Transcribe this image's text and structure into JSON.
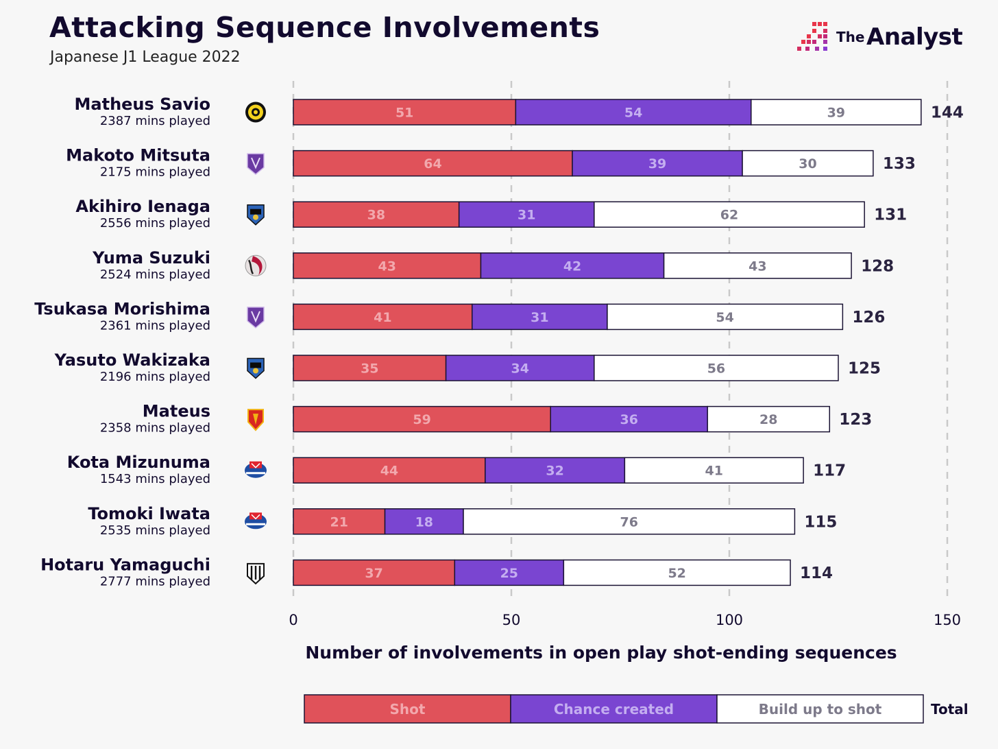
{
  "header": {
    "title": "Attacking Sequence Involvements",
    "subtitle": "Japanese J1 League 2022"
  },
  "brand": {
    "logo_small": "The",
    "logo_large": "Analyst",
    "mark_colors": [
      "#e8364a",
      "#c2297a",
      "#8a3bd0"
    ]
  },
  "colors": {
    "shot": "#e0525a",
    "chance": "#7a45d1",
    "buildup": "#ffffff",
    "shot_text": "#f2a8ad",
    "chance_text": "#c4aef0",
    "buildup_text": "#7d7a8a",
    "grid": "#c9c9c9"
  },
  "chart_data": {
    "type": "bar",
    "orientation": "horizontal",
    "stacked": true,
    "xlabel": "Number of involvements in open play shot-ending sequences",
    "xlim": [
      0,
      150
    ],
    "xticks": [
      0,
      50,
      100,
      150
    ],
    "grid": "x-dashed",
    "legend_placement": "bottom",
    "categories": [
      "Matheus Savio",
      "Makoto Mitsuta",
      "Akihiro Ienaga",
      "Yuma Suzuki",
      "Tsukasa Morishima",
      "Yasuto Wakizaka",
      "Mateus",
      "Kota Mizunuma",
      "Tomoki Iwata",
      "Hotaru Yamaguchi"
    ],
    "minutes": [
      "2387 mins played",
      "2175 mins played",
      "2556 mins played",
      "2524 mins played",
      "2361 mins played",
      "2196 mins played",
      "2358 mins played",
      "1543 mins played",
      "2535 mins played",
      "2777 mins played"
    ],
    "crest_icons": [
      "kashiwa-reysol-crest-icon",
      "sanfrecce-hiroshima-crest-icon",
      "kawasaki-frontale-crest-icon",
      "kashima-antlers-crest-icon",
      "sanfrecce-hiroshima-crest-icon",
      "kawasaki-frontale-crest-icon",
      "nagoya-grampus-crest-icon",
      "yokohama-f-marinos-crest-icon",
      "yokohama-f-marinos-crest-icon",
      "vissel-kobe-crest-icon"
    ],
    "series": [
      {
        "name": "Shot",
        "values": [
          51,
          64,
          38,
          43,
          41,
          35,
          59,
          44,
          21,
          37
        ]
      },
      {
        "name": "Chance created",
        "values": [
          54,
          39,
          31,
          42,
          31,
          34,
          36,
          32,
          18,
          25
        ]
      },
      {
        "name": "Build up to shot",
        "values": [
          39,
          30,
          62,
          43,
          54,
          56,
          28,
          41,
          76,
          52
        ]
      }
    ],
    "totals": [
      144,
      133,
      131,
      128,
      126,
      125,
      123,
      117,
      115,
      114
    ],
    "legend_total_label": "Total"
  }
}
